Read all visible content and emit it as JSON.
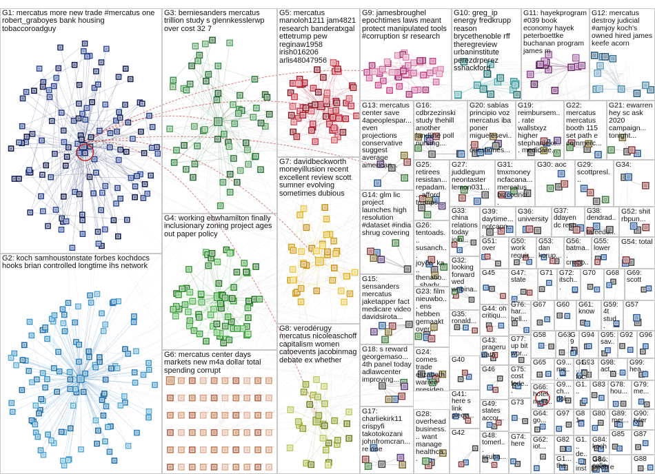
{
  "edge_colors": {
    "G1": "#1a2a66",
    "G2": "#2a7fbf",
    "G3": "#2f7a3c",
    "G4": "#3d9e3d",
    "G5": "#b01e2e",
    "G6": "#cc8a6a",
    "G7": "#e2b428",
    "G8": "#8f9e2a",
    "G9": "#cc4488",
    "G10": "#3d9a9a",
    "G11": "#6b2a6b",
    "G12": "#4a88aa",
    "other": "#9a9a9a",
    "cross": "#c83030"
  },
  "groups": [
    {
      "id": "G1",
      "label": "G1: mercatus more new trade #mercatus one robert_graboyes bank housing tobaccoroadguy",
      "nodes": 130,
      "style": "dark"
    },
    {
      "id": "G2",
      "label": "G2: koch samhoustonstate forbes kochdocs hooks brian controlled longtime ihs network",
      "nodes": 120,
      "style": "hub"
    },
    {
      "id": "G3",
      "label": "G3: berniesanders mercatus trillion study s glennkesslerwp over cost 32 7",
      "nodes": 60,
      "style": "green"
    },
    {
      "id": "G4",
      "label": "G4: working ebwhamilton finally inclusionary zoning project ages out paper policy",
      "nodes": 75,
      "style": "green2"
    },
    {
      "id": "G5",
      "label": "G5: mercatus manoloh1211 jam4821 research banderatxgal ettetrump pew reginaw1958 irish016206 arlis48047956",
      "nodes": 65,
      "style": "red"
    },
    {
      "id": "G6",
      "label": "G6: mercatus center days markets new m4a dollar total spending corrupt",
      "nodes": 60,
      "style": "grid"
    },
    {
      "id": "G7",
      "label": "G7: davidbeckworth moneyillusion recent excellent review scott sumner evolving sometimes dubious",
      "nodes": 40,
      "style": "yellow"
    },
    {
      "id": "G8",
      "label": "G8: verodérugy mercatus nicoleaschoff capitalism women catoevents jacobinmag debate ex whether",
      "nodes": 30,
      "style": "olive"
    },
    {
      "id": "G9",
      "label": "G9: jamesbroughel epochtimes laws meant protect manipulated tools #corruption sr research",
      "nodes": 45,
      "style": "pink"
    },
    {
      "id": "G10",
      "label": "G10: greg_ip energy fredkrupp reason brycethenoble rff theregreview urbaninstitute perezdrperez sshackford",
      "nodes": 18,
      "style": "teal"
    },
    {
      "id": "G11",
      "label": "G11: hayekprogram #039 book economy hayek peterboettke buchanan program james m",
      "nodes": 14,
      "style": "purple"
    },
    {
      "id": "G12",
      "label": "G12: mercatus destroy judicial #amjoy koch's owned hired james keefe acorn",
      "nodes": 12,
      "style": "blue"
    },
    {
      "id": "G13",
      "label": "G13: mercatus center save 4apeoplespar... even projections conservative suggest average american...",
      "nodes": 6
    },
    {
      "id": "G14",
      "label": "G14: glm lic project launches high resolution #dataset #india shrug covering",
      "nodes": 6
    },
    {
      "id": "G15",
      "label": "G15: sensanders mercatus jaketapper fact medicare video davidsirota...",
      "nodes": 6
    },
    {
      "id": "G16",
      "label": "G16: cdbrzezinski study thehill another landline poll nursing...",
      "nodes": 8
    },
    {
      "id": "G17",
      "label": "G17: charliekirk11 crispyfi takotokozani johnfromcran... re one",
      "nodes": 6
    },
    {
      "id": "G18",
      "label": "G18: s reward georgemaso... 4th panel today adlawcenter improving...",
      "nodes": 6
    },
    {
      "id": "G19",
      "label": "G19: reimbursem... rate wallstxyz higher stephanieke... medicare...",
      "nodes": 6
    },
    {
      "id": "G20",
      "label": "G20: sabías principio voz mercatus iba poner miguelesevi... cuestiones...",
      "nodes": 8
    },
    {
      "id": "G21",
      "label": "G21: ewarren hey sc ask 2020 campaign... tonight...",
      "nodes": 5
    },
    {
      "id": "G22",
      "label": "G22: mercatus mercatus booth 115 set path e commerc...",
      "nodes": 5
    },
    {
      "id": "G23",
      "label": "G23: film nieuwbo... ens hebben gemaakt over...",
      "nodes": 5
    },
    {
      "id": "G24",
      "label": "G24: comes trade elizabeth warren presiden...",
      "nodes": 5
    },
    {
      "id": "G25",
      "label": "G25: retirees resistan... repadam... afford trumps...",
      "nodes": 6
    },
    {
      "id": "G26",
      "label": "G26: tentoads... susanch... joyce_ka... thenatio... shady...",
      "nodes": 5
    },
    {
      "id": "G27",
      "label": "G27: juddlegum neontaster lemon031...",
      "nodes": 4
    },
    {
      "id": "G28",
      "label": "G28: overhead business... want manage healthca...",
      "nodes": 5
    },
    {
      "id": "G29",
      "label": "G29: scottpresl...",
      "nodes": 4
    },
    {
      "id": "G30",
      "label": "G30: aoc",
      "nodes": 4
    },
    {
      "id": "G31",
      "label": "G31: tmxmoney ncfacana... mercatus bizcounci...",
      "nodes": 4
    },
    {
      "id": "G32",
      "label": "G32: looking forward wed webina...",
      "nodes": 4
    },
    {
      "id": "G33",
      "label": "G33: china relations today join...",
      "nodes": 4
    },
    {
      "id": "G34",
      "label": "G34:",
      "nodes": 3
    },
    {
      "id": "G35",
      "label": "G35: ronald...",
      "nodes": 3
    },
    {
      "id": "G36",
      "label": "G36: university",
      "nodes": 3
    },
    {
      "id": "G37",
      "label": "G37: ddayen dc rest...",
      "nodes": 3
    },
    {
      "id": "G38",
      "label": "G38: dendrad... tafeedu...",
      "nodes": 3
    },
    {
      "id": "G39",
      "label": "G39: daytime... notcapn...",
      "nodes": 3
    },
    {
      "id": "G40",
      "label": "G40",
      "nodes": 3
    },
    {
      "id": "G41",
      "label": "G41: here s link piece...",
      "nodes": 3
    },
    {
      "id": "G42",
      "label": "G42",
      "nodes": 3
    },
    {
      "id": "G43",
      "label": "G43: prageru data",
      "nodes": 3
    },
    {
      "id": "G44",
      "label": "G44: oh critiqu...",
      "nodes": 3
    },
    {
      "id": "G45",
      "label": "G45",
      "nodes": 3
    },
    {
      "id": "G46",
      "label": "G46",
      "nodes": 3
    },
    {
      "id": "G47",
      "label": "G47: state",
      "nodes": 3
    },
    {
      "id": "G48",
      "label": "G48: tomerl... scuba...",
      "nodes": 3
    },
    {
      "id": "G49",
      "label": "G49: states accor...",
      "nodes": 3
    },
    {
      "id": "G50",
      "label": "G50: work requir...",
      "nodes": 3
    },
    {
      "id": "G51",
      "label": "G51: over",
      "nodes": 3
    },
    {
      "id": "G52",
      "label": "G52: shit rbpun...",
      "nodes": 3
    },
    {
      "id": "G53",
      "label": "G53: dan korup...",
      "nodes": 3
    },
    {
      "id": "G54",
      "label": "G54: total",
      "nodes": 3
    },
    {
      "id": "G55",
      "label": "G55: lower",
      "nodes": 3
    },
    {
      "id": "G56",
      "label": "G56: batma... cnnpo...",
      "nodes": 3
    },
    {
      "id": "G57",
      "label": "G57",
      "nodes": 2
    },
    {
      "id": "G58",
      "label": "G58",
      "nodes": 2
    },
    {
      "id": "G59",
      "label": "G59: 4t stud...",
      "nodes": 2
    },
    {
      "id": "G60",
      "label": "G60",
      "nodes": 2
    },
    {
      "id": "G61",
      "label": "G61: know",
      "nodes": 2
    },
    {
      "id": "G62",
      "label": "G62: iot...",
      "nodes": 2
    },
    {
      "id": "G63",
      "label": "G63",
      "nodes": 2
    },
    {
      "id": "G64",
      "label": "G64: go...",
      "nodes": 2
    },
    {
      "id": "G65",
      "label": "G65",
      "nodes": 2
    },
    {
      "id": "G66",
      "label": "G66: hotel merc...",
      "nodes": 2
    },
    {
      "id": "G67",
      "label": "G67",
      "nodes": 2
    },
    {
      "id": "G68",
      "label": "G68",
      "nodes": 2
    },
    {
      "id": "G69",
      "label": "G69: scott",
      "nodes": 2
    },
    {
      "id": "G70",
      "label": "G70",
      "nodes": 2
    },
    {
      "id": "G71",
      "label": "G71",
      "nodes": 2
    },
    {
      "id": "G72",
      "label": "G72: itsch...",
      "nodes": 2
    },
    {
      "id": "G73",
      "label": "G73",
      "nodes": 2
    },
    {
      "id": "G74",
      "label": "G74: here",
      "nodes": 2
    },
    {
      "id": "G75",
      "label": "G75: cost fede...",
      "nodes": 2
    },
    {
      "id": "G76",
      "label": "G76: har... hell...",
      "nodes": 2
    },
    {
      "id": "G77",
      "label": "G77: up bit wor...",
      "nodes": 2
    },
    {
      "id": "G78",
      "label": "G78: hou...",
      "nodes": 2
    },
    {
      "id": "G79",
      "label": "G79: me...",
      "nodes": 2
    },
    {
      "id": "G80",
      "label": "G80",
      "nodes": 2
    },
    {
      "id": "G81",
      "label": "G81",
      "nodes": 2
    },
    {
      "id": "G82",
      "label": "G82",
      "nodes": 2
    },
    {
      "id": "G83",
      "label": "G83",
      "nodes": 2
    },
    {
      "id": "G84",
      "label": "G84: koch...",
      "nodes": 2
    },
    {
      "id": "G85",
      "label": "G85",
      "nodes": 2
    },
    {
      "id": "G86",
      "label": "G86: people",
      "nodes": 2
    },
    {
      "id": "G87",
      "label": "G87",
      "nodes": 2
    },
    {
      "id": "G88",
      "label": "G88",
      "nodes": 2
    },
    {
      "id": "G89",
      "label": "G89: mer...",
      "nodes": 2
    },
    {
      "id": "G90",
      "label": "G90: tyler",
      "nodes": 2
    },
    {
      "id": "G91",
      "label": "G91",
      "nodes": 2
    },
    {
      "id": "G92",
      "label": "G92",
      "nodes": 2
    },
    {
      "id": "G93",
      "label": "G93",
      "nodes": 2
    },
    {
      "id": "G94",
      "label": "G94",
      "nodes": 2
    },
    {
      "id": "G95",
      "label": "G95: sav...",
      "nodes": 2
    },
    {
      "id": "G96",
      "label": "G96",
      "nodes": 2
    },
    {
      "id": "G97",
      "label": "G97",
      "nodes": 2
    },
    {
      "id": "G98",
      "label": "G98: act...",
      "nodes": 2
    },
    {
      "id": "G99",
      "label": "G99: hea...",
      "nodes": 2
    },
    {
      "id": "G9x1",
      "label": "G9... me...",
      "nodes": 2
    },
    {
      "id": "G9x2",
      "label": "G9... ch... dol...",
      "nodes": 2
    },
    {
      "id": "G1x1",
      "label": "G1... foc...",
      "nodes": 2
    },
    {
      "id": "G1x2",
      "label": "G1... de... inst...",
      "nodes": 2
    },
    {
      "id": "G1x3",
      "label": "G1... the",
      "nodes": 2
    },
    {
      "id": "G1x4",
      "label": "G1...",
      "nodes": 2
    },
    {
      "id": "G8x1",
      "label": "G8... colle...",
      "nodes": 2
    }
  ]
}
